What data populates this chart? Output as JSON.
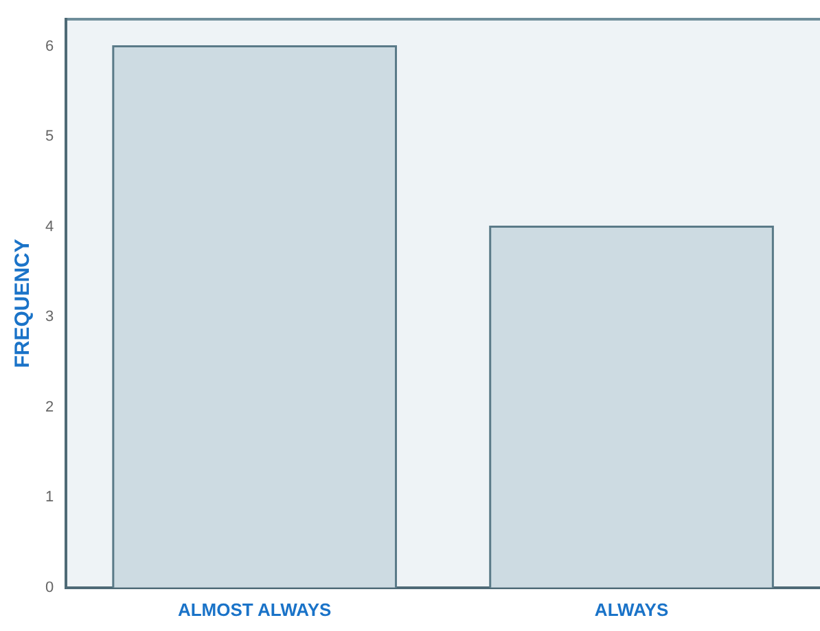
{
  "chart_data": {
    "type": "bar",
    "ylabel": "FREQUENCY",
    "categories": [
      "ALMOST ALWAYS",
      "ALWAYS"
    ],
    "values": [
      6,
      4
    ],
    "color": "#cddbe2",
    "ylim": [
      0,
      6.3
    ],
    "yticks": [
      0,
      1,
      2,
      3,
      4,
      5,
      6
    ],
    "grid": false,
    "legend": false
  }
}
